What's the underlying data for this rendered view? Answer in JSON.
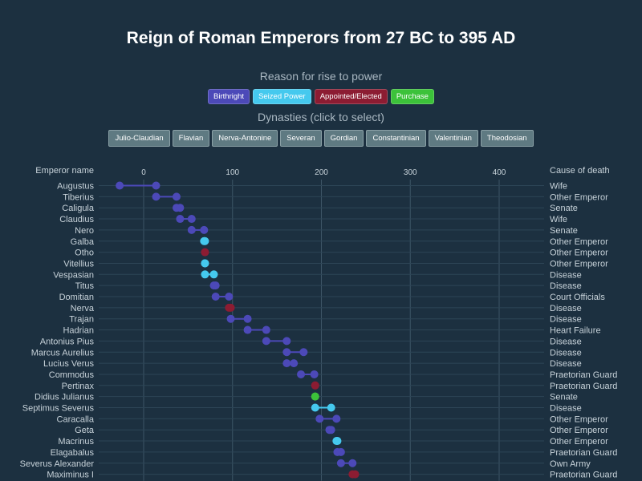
{
  "title": "Reign of Roman Emperors from 27 BC to 395 AD",
  "reason_heading": "Reason for rise to power",
  "dynasties_heading": "Dynasties (click to select)",
  "legend": [
    {
      "label": "Birthright",
      "color": "#4c49b8"
    },
    {
      "label": "Seized Power",
      "color": "#45c9ee"
    },
    {
      "label": "Appointed/Elected",
      "color": "#8c1c32"
    },
    {
      "label": "Purchase",
      "color": "#3cc23a"
    }
  ],
  "dynasties": [
    "Julio-Claudian",
    "Flavian",
    "Nerva-Antonine",
    "Severan",
    "Gordian",
    "Constantinian",
    "Valentinian",
    "Theodosian"
  ],
  "chart_data": {
    "type": "dumbbell",
    "left_axis_label": "Emperor name",
    "right_axis_label": "Cause of death",
    "x_ticks": [
      "0",
      "100",
      "200",
      "300",
      "400"
    ],
    "x_tick_values": [
      0,
      100,
      200,
      300,
      400
    ],
    "xlim": [
      -40,
      440
    ],
    "grid": true,
    "rows": [
      {
        "name": "Augustus",
        "start": -27,
        "end": 14,
        "rise": "Birthright",
        "cause": "Wife"
      },
      {
        "name": "Tiberius",
        "start": 14,
        "end": 37,
        "rise": "Birthright",
        "cause": "Other Emperor"
      },
      {
        "name": "Caligula",
        "start": 37,
        "end": 41,
        "rise": "Birthright",
        "cause": "Senate"
      },
      {
        "name": "Claudius",
        "start": 41,
        "end": 54,
        "rise": "Birthright",
        "cause": "Wife"
      },
      {
        "name": "Nero",
        "start": 54,
        "end": 68,
        "rise": "Birthright",
        "cause": "Senate"
      },
      {
        "name": "Galba",
        "start": 68,
        "end": 69,
        "rise": "Seized Power",
        "cause": "Other Emperor"
      },
      {
        "name": "Otho",
        "start": 69,
        "end": 69,
        "rise": "Appointed/Elected",
        "cause": "Other Emperor"
      },
      {
        "name": "Vitellius",
        "start": 69,
        "end": 69,
        "rise": "Seized Power",
        "cause": "Other Emperor"
      },
      {
        "name": "Vespasian",
        "start": 69,
        "end": 79,
        "rise": "Seized Power",
        "cause": "Disease"
      },
      {
        "name": "Titus",
        "start": 79,
        "end": 81,
        "rise": "Birthright",
        "cause": "Disease"
      },
      {
        "name": "Domitian",
        "start": 81,
        "end": 96,
        "rise": "Birthright",
        "cause": "Court Officials"
      },
      {
        "name": "Nerva",
        "start": 96,
        "end": 98,
        "rise": "Appointed/Elected",
        "cause": "Disease"
      },
      {
        "name": "Trajan",
        "start": 98,
        "end": 117,
        "rise": "Birthright",
        "cause": "Disease"
      },
      {
        "name": "Hadrian",
        "start": 117,
        "end": 138,
        "rise": "Birthright",
        "cause": "Heart Failure"
      },
      {
        "name": "Antonius Pius",
        "start": 138,
        "end": 161,
        "rise": "Birthright",
        "cause": "Disease"
      },
      {
        "name": "Marcus Aurelius",
        "start": 161,
        "end": 180,
        "rise": "Birthright",
        "cause": "Disease"
      },
      {
        "name": "Lucius Verus",
        "start": 161,
        "end": 169,
        "rise": "Birthright",
        "cause": "Disease"
      },
      {
        "name": "Commodus",
        "start": 177,
        "end": 192,
        "rise": "Birthright",
        "cause": "Praetorian Guard"
      },
      {
        "name": "Pertinax",
        "start": 193,
        "end": 193,
        "rise": "Appointed/Elected",
        "cause": "Praetorian Guard"
      },
      {
        "name": "Didius Julianus",
        "start": 193,
        "end": 193,
        "rise": "Purchase",
        "cause": "Senate"
      },
      {
        "name": "Septimus Severus",
        "start": 193,
        "end": 211,
        "rise": "Seized Power",
        "cause": "Disease"
      },
      {
        "name": "Caracalla",
        "start": 198,
        "end": 217,
        "rise": "Birthright",
        "cause": "Other Emperor"
      },
      {
        "name": "Geta",
        "start": 209,
        "end": 211,
        "rise": "Birthright",
        "cause": "Other Emperor"
      },
      {
        "name": "Macrinus",
        "start": 217,
        "end": 218,
        "rise": "Seized Power",
        "cause": "Other Emperor"
      },
      {
        "name": "Elagabalus",
        "start": 218,
        "end": 222,
        "rise": "Birthright",
        "cause": "Praetorian Guard"
      },
      {
        "name": "Severus Alexander",
        "start": 222,
        "end": 235,
        "rise": "Birthright",
        "cause": "Own Army"
      },
      {
        "name": "Maximinus I",
        "start": 235,
        "end": 238,
        "rise": "Appointed/Elected",
        "cause": "Praetorian Guard"
      }
    ]
  }
}
